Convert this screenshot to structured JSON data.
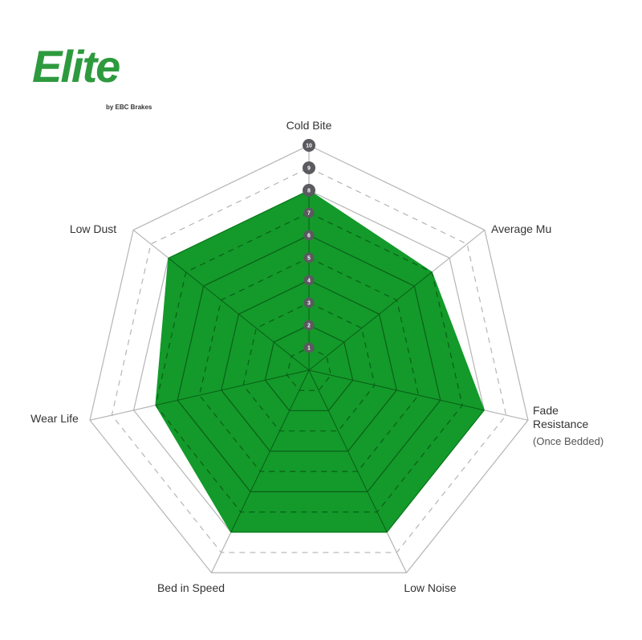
{
  "logo": {
    "brand": "Elite",
    "tagline": "by EBC Brakes"
  },
  "chart_data": {
    "type": "radar",
    "categories": [
      "Cold Bite",
      "Average Mu",
      "Fade Resistance",
      "Low Noise",
      "Bed in Speed",
      "Wear Life",
      "Low Dust"
    ],
    "category_notes": {
      "Fade Resistance": "(Once Bedded)"
    },
    "values": [
      8,
      7,
      8,
      8,
      8,
      7,
      8
    ],
    "rlim": [
      0,
      10
    ],
    "tick_labels": [
      "1",
      "2",
      "3",
      "4",
      "5",
      "6",
      "7",
      "8",
      "9",
      "10"
    ],
    "colors": {
      "fill": "#139a2a",
      "grid": "#b5b5b5",
      "tick_badge": "#5a5a5f",
      "logo": "#2e9a3e"
    }
  }
}
